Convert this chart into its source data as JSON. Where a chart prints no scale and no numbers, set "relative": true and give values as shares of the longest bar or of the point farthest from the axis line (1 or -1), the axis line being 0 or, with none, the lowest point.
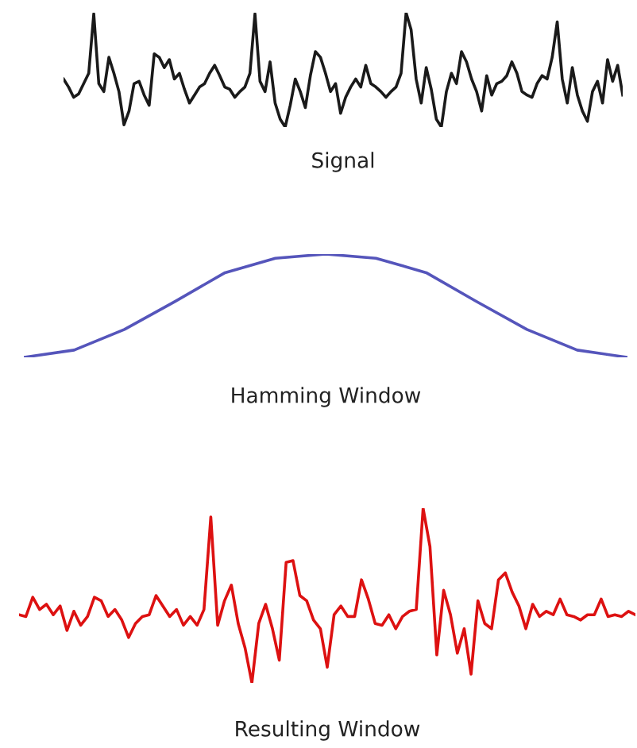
{
  "chart_data": [
    {
      "type": "line",
      "title": "Signal",
      "relative": true,
      "color": "#1a1a1a",
      "values": [
        0.42,
        0.35,
        0.26,
        0.29,
        0.38,
        0.47,
        0.99,
        0.38,
        0.31,
        0.61,
        0.47,
        0.31,
        0.02,
        0.14,
        0.38,
        0.4,
        0.28,
        0.19,
        0.64,
        0.61,
        0.52,
        0.59,
        0.42,
        0.47,
        0.33,
        0.21,
        0.28,
        0.35,
        0.38,
        0.47,
        0.54,
        0.45,
        0.35,
        0.33,
        0.26,
        0.31,
        0.35,
        0.47,
        0.99,
        0.4,
        0.31,
        0.57,
        0.21,
        0.07,
        0,
        0.19,
        0.42,
        0.31,
        0.17,
        0.45,
        0.66,
        0.61,
        0.47,
        0.31,
        0.38,
        0.12,
        0.26,
        0.35,
        0.42,
        0.35,
        0.54,
        0.38,
        0.35,
        0.31,
        0.26,
        0.31,
        0.35,
        0.47,
        1,
        0.85,
        0.42,
        0.21,
        0.52,
        0.33,
        0.07,
        0,
        0.31,
        0.47,
        0.38,
        0.66,
        0.57,
        0.42,
        0.31,
        0.14,
        0.45,
        0.28,
        0.38,
        0.4,
        0.45,
        0.57,
        0.47,
        0.31,
        0.28,
        0.26,
        0.38,
        0.45,
        0.42,
        0.61,
        0.92,
        0.42,
        0.21,
        0.52,
        0.28,
        0.14,
        0.05,
        0.31,
        0.4,
        0.21,
        0.59,
        0.4,
        0.54,
        0.28
      ]
    },
    {
      "type": "line",
      "title": "Hamming Window",
      "relative": true,
      "color": "#5555bb",
      "values": [
        0,
        0.07,
        0.27,
        0.54,
        0.82,
        0.96,
        1,
        0.96,
        0.82,
        0.54,
        0.27,
        0.07,
        0
      ]
    },
    {
      "type": "line",
      "title": "Resulting Window",
      "relative": true,
      "color": "#dd1111",
      "values": [
        0.39,
        0.38,
        0.49,
        0.42,
        0.45,
        0.39,
        0.44,
        0.3,
        0.41,
        0.33,
        0.38,
        0.49,
        0.47,
        0.38,
        0.42,
        0.36,
        0.26,
        0.34,
        0.38,
        0.39,
        0.5,
        0.44,
        0.38,
        0.42,
        0.33,
        0.38,
        0.33,
        0.42,
        0.95,
        0.33,
        0.47,
        0.56,
        0.34,
        0.2,
        0,
        0.34,
        0.45,
        0.31,
        0.13,
        0.69,
        0.7,
        0.5,
        0.47,
        0.36,
        0.31,
        0.09,
        0.39,
        0.44,
        0.38,
        0.38,
        0.59,
        0.48,
        0.34,
        0.33,
        0.39,
        0.31,
        0.38,
        0.41,
        0.42,
        1,
        0.78,
        0.16,
        0.53,
        0.39,
        0.17,
        0.31,
        0.05,
        0.47,
        0.34,
        0.31,
        0.59,
        0.63,
        0.52,
        0.44,
        0.31,
        0.45,
        0.38,
        0.41,
        0.39,
        0.48,
        0.39,
        0.38,
        0.36,
        0.39,
        0.39,
        0.48,
        0.38,
        0.39,
        0.38,
        0.41,
        0.39
      ]
    }
  ]
}
